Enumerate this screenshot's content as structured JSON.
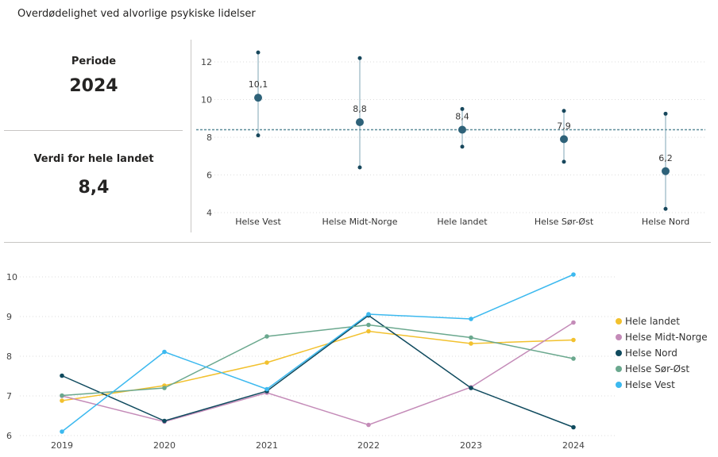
{
  "header": {
    "title": "Overdødelighet ved alvorlige psykiske lidelser"
  },
  "kpi": {
    "period_label": "Periode",
    "period_value": "2024",
    "national_label": "Verdi for hele landet",
    "national_value": "8,4"
  },
  "chart_data": [
    {
      "type": "scatter",
      "subtype": "dot-with-error-bars",
      "categories": [
        "Helse Vest",
        "Helse Midt-Norge",
        "Hele landet",
        "Helse Sør-Øst",
        "Helse Nord"
      ],
      "values": [
        10.1,
        8.8,
        8.4,
        7.9,
        6.2
      ],
      "data_labels": [
        "10,1",
        "8,8",
        "8,4",
        "7,9",
        "6,2"
      ],
      "lower": [
        8.1,
        6.4,
        7.5,
        6.7,
        4.2
      ],
      "upper": [
        12.5,
        12.2,
        9.5,
        9.4,
        9.25
      ],
      "reference_line": 8.4,
      "ylim": [
        4,
        12.8
      ],
      "yticks": [
        4,
        6,
        8,
        10,
        12
      ],
      "grid": true,
      "colors": {
        "point": "#2e6279",
        "whisker": "#7fa6b4",
        "ref": "#5e8e9a"
      }
    },
    {
      "type": "line",
      "x": [
        "2019",
        "2020",
        "2021",
        "2022",
        "2023",
        "2024"
      ],
      "ylim": [
        6,
        10.1
      ],
      "yticks": [
        6,
        7,
        8,
        9,
        10
      ],
      "grid": true,
      "legend": "right",
      "series": [
        {
          "name": "Hele landet",
          "color": "#f2c12e",
          "values": [
            6.88,
            7.26,
            7.84,
            8.63,
            8.32,
            8.41
          ]
        },
        {
          "name": "Helse Midt-Norge",
          "color": "#c48bb8",
          "values": [
            7.0,
            6.35,
            7.08,
            6.27,
            7.22,
            8.85
          ]
        },
        {
          "name": "Helse Nord",
          "color": "#0f4a5e",
          "values": [
            7.51,
            6.37,
            7.12,
            9.03,
            7.2,
            6.21
          ]
        },
        {
          "name": "Helse Sør-Øst",
          "color": "#6aa88e",
          "values": [
            7.01,
            7.2,
            8.5,
            8.79,
            8.47,
            7.94
          ]
        },
        {
          "name": "Helse Vest",
          "color": "#3cb9ef",
          "values": [
            6.1,
            8.11,
            7.17,
            9.06,
            8.94,
            10.06
          ]
        }
      ]
    }
  ]
}
